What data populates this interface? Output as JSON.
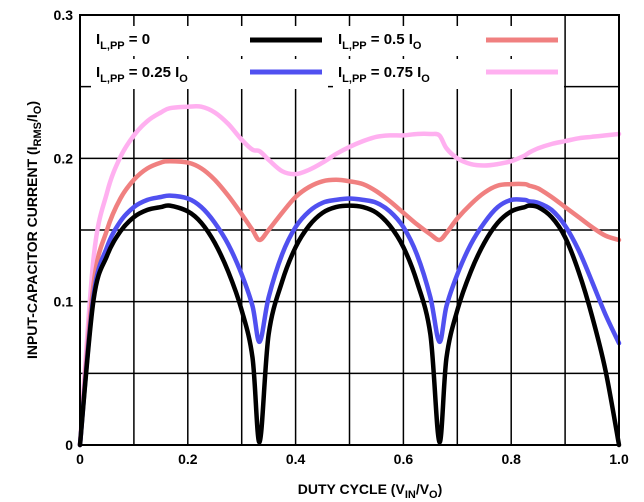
{
  "chart_data": {
    "type": "line",
    "xlabel": {
      "main": "DUTY CYCLE (V",
      "sub": "IN",
      "tail": "/V",
      "sub2": "O",
      "end": ")"
    },
    "ylabel": {
      "main": "INPUT-CAPACITOR CURRENT (I",
      "sub": "RMS",
      "tail": "/I",
      "sub2": "O",
      "end": ")"
    },
    "xlim": [
      0,
      1
    ],
    "ylim": [
      0,
      0.3
    ],
    "x_ticks": [
      {
        "value": 0,
        "label": "0"
      },
      {
        "value": 0.2,
        "label": "0.2"
      },
      {
        "value": 0.4,
        "label": "0.4"
      },
      {
        "value": 0.6,
        "label": "0.6"
      },
      {
        "value": 0.8,
        "label": "0.8"
      },
      {
        "value": 1.0,
        "label": "1.0"
      }
    ],
    "y_ticks": [
      {
        "value": 0,
        "label": "0"
      },
      {
        "value": 0.1,
        "label": "0.1"
      },
      {
        "value": 0.2,
        "label": "0.2"
      },
      {
        "value": 0.3,
        "label": "0.3"
      }
    ],
    "grid": true,
    "legend_position": "top",
    "x": [
      0,
      0.025,
      0.05,
      0.075,
      0.1,
      0.125,
      0.15,
      0.1667,
      0.2,
      0.225,
      0.25,
      0.275,
      0.3,
      0.32,
      0.3333,
      0.35,
      0.375,
      0.4,
      0.425,
      0.45,
      0.475,
      0.5,
      0.525,
      0.55,
      0.575,
      0.6,
      0.625,
      0.65,
      0.6667,
      0.68,
      0.7,
      0.725,
      0.75,
      0.775,
      0.8,
      0.825,
      0.8333,
      0.85,
      0.875,
      0.9,
      0.925,
      0.95,
      0.975,
      1.0
    ],
    "series": [
      {
        "name_main": "I",
        "name_sub": "L,PP",
        "name_tail": " = 0",
        "name_sub2": "",
        "color": "#000000",
        "values": [
          0,
          0.101,
          0.132,
          0.149,
          0.159,
          0.164,
          0.166,
          0.167,
          0.163,
          0.155,
          0.141,
          0.121,
          0.094,
          0.061,
          0.002,
          0.077,
          0.114,
          0.138,
          0.153,
          0.162,
          0.166,
          0.167,
          0.166,
          0.162,
          0.153,
          0.138,
          0.114,
          0.077,
          0.002,
          0.061,
          0.094,
          0.121,
          0.141,
          0.155,
          0.163,
          0.166,
          0.167,
          0.166,
          0.159,
          0.145,
          0.121,
          0.09,
          0.052,
          0
        ]
      },
      {
        "name_main": "I",
        "name_sub": "L,PP",
        "name_tail": " = 0.25 I",
        "name_sub2": "O",
        "color": "#5050f0",
        "values": [
          0,
          0.104,
          0.138,
          0.156,
          0.166,
          0.171,
          0.173,
          0.174,
          0.172,
          0.166,
          0.155,
          0.14,
          0.119,
          0.097,
          0.072,
          0.103,
          0.133,
          0.152,
          0.163,
          0.169,
          0.171,
          0.172,
          0.171,
          0.169,
          0.163,
          0.152,
          0.133,
          0.103,
          0.072,
          0.097,
          0.119,
          0.14,
          0.155,
          0.166,
          0.171,
          0.171,
          0.17,
          0.169,
          0.164,
          0.153,
          0.136,
          0.114,
          0.091,
          0.071
        ]
      },
      {
        "name_main": "I",
        "name_sub": "L,PP",
        "name_tail": " = 0.5 I",
        "name_sub2": "O",
        "color": "#f08080",
        "values": [
          0,
          0.112,
          0.15,
          0.172,
          0.185,
          0.193,
          0.197,
          0.198,
          0.197,
          0.193,
          0.185,
          0.174,
          0.161,
          0.15,
          0.143,
          0.15,
          0.162,
          0.173,
          0.18,
          0.184,
          0.185,
          0.184,
          0.182,
          0.177,
          0.17,
          0.162,
          0.154,
          0.147,
          0.143,
          0.148,
          0.158,
          0.168,
          0.176,
          0.181,
          0.182,
          0.182,
          0.181,
          0.179,
          0.173,
          0.166,
          0.159,
          0.152,
          0.146,
          0.143
        ]
      },
      {
        "name_main": "I",
        "name_sub": "L,PP",
        "name_tail": " = 0.75 I",
        "name_sub2": "O",
        "color": "#ffb0f0",
        "values": [
          0,
          0.13,
          0.176,
          0.201,
          0.216,
          0.226,
          0.232,
          0.235,
          0.236,
          0.236,
          0.232,
          0.224,
          0.213,
          0.206,
          0.205,
          0.199,
          0.191,
          0.189,
          0.192,
          0.197,
          0.203,
          0.208,
          0.212,
          0.215,
          0.216,
          0.216,
          0.217,
          0.217,
          0.216,
          0.207,
          0.2,
          0.196,
          0.195,
          0.196,
          0.198,
          0.202,
          0.204,
          0.207,
          0.21,
          0.212,
          0.214,
          0.215,
          0.216,
          0.217
        ]
      }
    ]
  }
}
